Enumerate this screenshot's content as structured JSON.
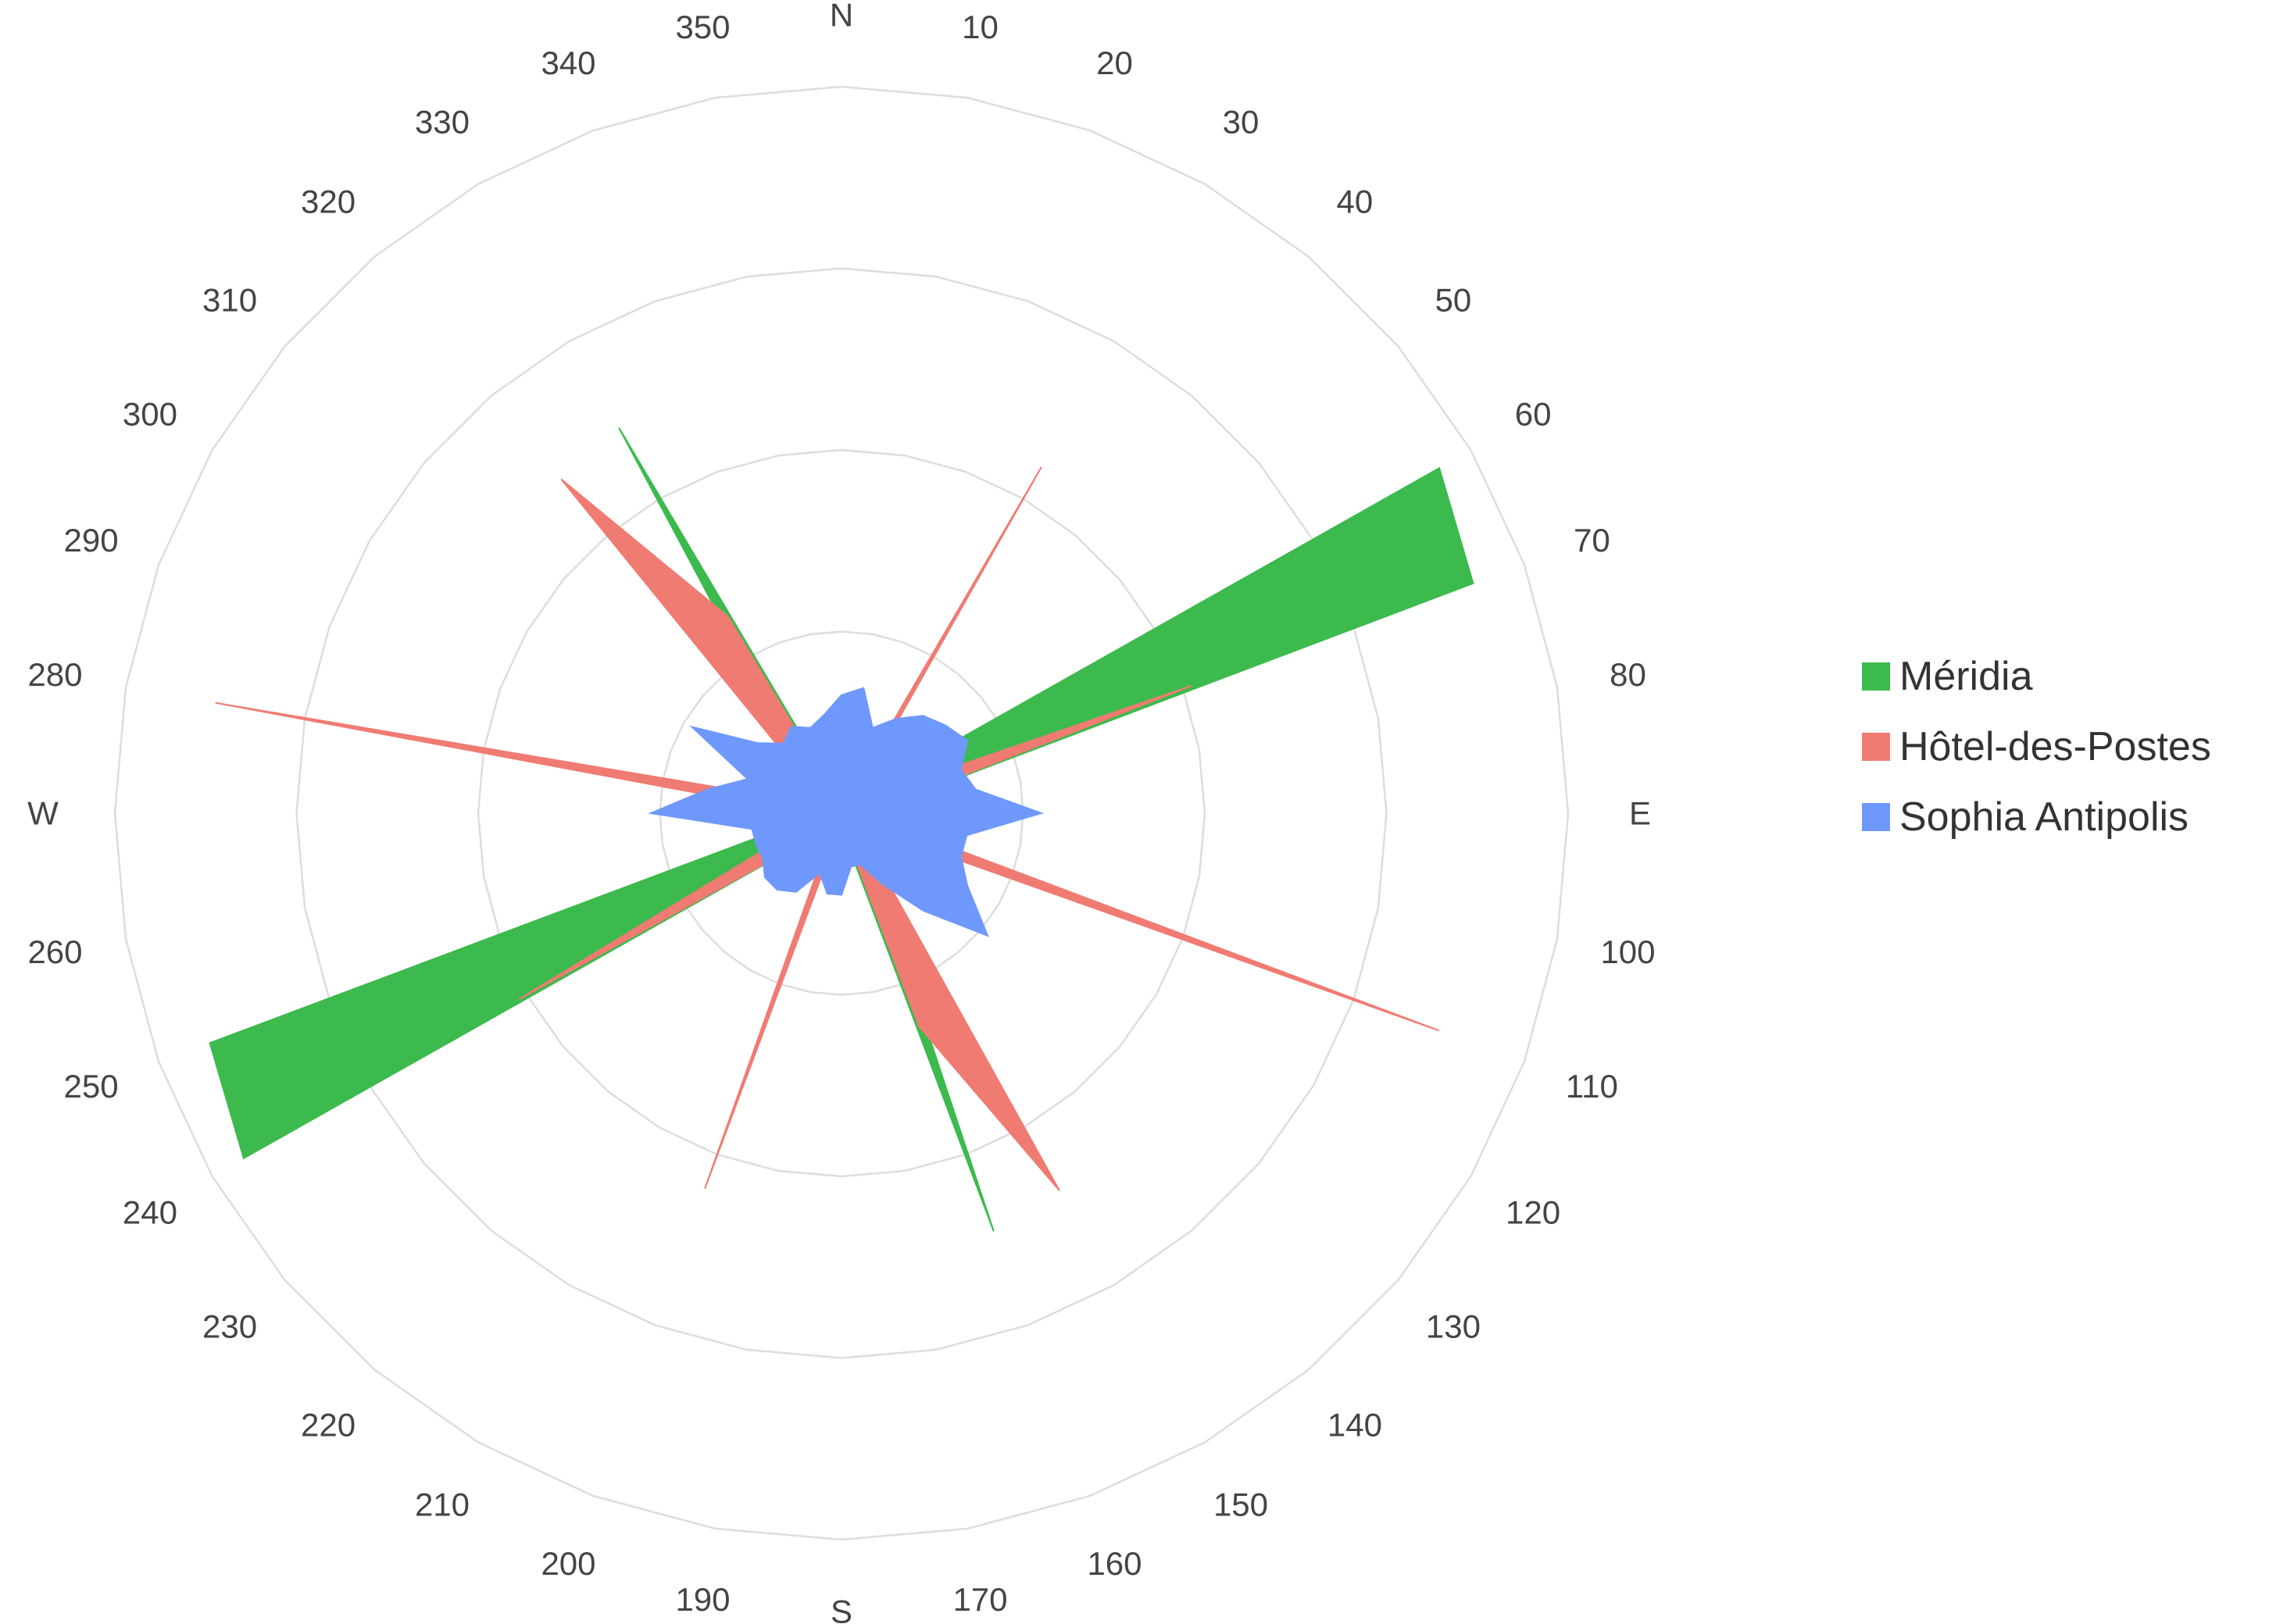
{
  "chart_data": {
    "type": "radar",
    "title": "",
    "angular_axis": {
      "direction": "clockwise",
      "rotation": "north-up",
      "directions": [
        0,
        10,
        20,
        30,
        40,
        50,
        60,
        70,
        80,
        90,
        100,
        110,
        120,
        130,
        140,
        150,
        160,
        170,
        180,
        190,
        200,
        210,
        220,
        230,
        240,
        250,
        260,
        270,
        280,
        290,
        300,
        310,
        320,
        330,
        340,
        350
      ],
      "tick_labels": [
        "N",
        "10",
        "20",
        "30",
        "40",
        "50",
        "60",
        "70",
        "80",
        "E",
        "100",
        "110",
        "120",
        "130",
        "140",
        "150",
        "160",
        "170",
        "S",
        "190",
        "200",
        "210",
        "220",
        "230",
        "240",
        "250",
        "260",
        "W",
        "280",
        "290",
        "300",
        "310",
        "320",
        "330",
        "340",
        "350"
      ]
    },
    "radial_axis": {
      "range": [
        0,
        8
      ],
      "rings": 4,
      "tick_labels_visible": false
    },
    "grid": true,
    "legend": "right",
    "series": [
      {
        "name": "Méridia",
        "color": "#3dba4e",
        "values": [
          0.2,
          0.1,
          0.2,
          0.3,
          0.3,
          0.4,
          7.6,
          7.4,
          0.5,
          0.3,
          0.3,
          0.2,
          0.3,
          0.3,
          0.5,
          0.7,
          4.9,
          0.3,
          0.3,
          0.1,
          0.2,
          0.3,
          0.3,
          0.4,
          7.6,
          7.4,
          0.4,
          0.3,
          0.3,
          0.3,
          0.3,
          0.4,
          0.8,
          4.9,
          0.3,
          0.1
        ]
      },
      {
        "name": "Hôtel-des-Postes",
        "color": "#f07b72",
        "values": [
          0.2,
          0.3,
          0.1,
          4.4,
          0.2,
          0.3,
          0.4,
          4.1,
          0.5,
          0.1,
          0.4,
          7.0,
          0.3,
          0.3,
          0.4,
          4.8,
          2.5,
          0.2,
          0.1,
          0.2,
          4.4,
          0.2,
          0.3,
          0.4,
          4.1,
          0.5,
          0.1,
          0.4,
          7.0,
          0.3,
          0.3,
          0.4,
          4.8,
          2.5,
          0.2,
          0.2
        ]
      },
      {
        "name": "Sophia Antipolis",
        "color": "#6f98fc",
        "values": [
          1.3,
          1.4,
          1.0,
          1.2,
          1.4,
          1.5,
          1.6,
          1.4,
          1.5,
          2.2,
          1.4,
          1.4,
          1.6,
          2.1,
          1.4,
          0.9,
          0.6,
          0.6,
          0.9,
          0.9,
          0.7,
          1.0,
          1.1,
          1.1,
          1.0,
          1.0,
          1.0,
          2.1,
          1.5,
          1.1,
          1.9,
          1.2,
          1.0,
          1.1,
          1.0,
          1.1
        ]
      }
    ]
  }
}
